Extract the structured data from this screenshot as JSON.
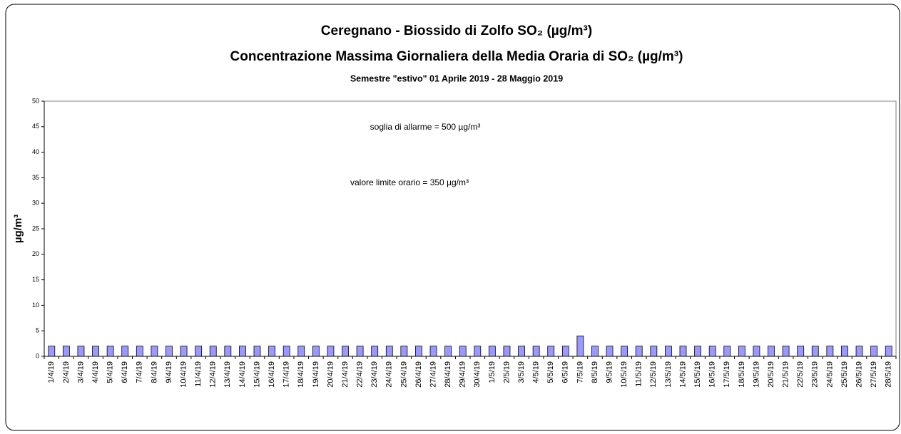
{
  "chart_data": {
    "type": "bar",
    "title": "Ceregnano - Biossido di Zolfo SO₂ (µg/m³)",
    "subtitle": "Concentrazione Massima Giornaliera della Media Oraria di SO₂ (µg/m³)",
    "period": "Semestre \"estivo\" 01 Aprile 2019 - 28 Maggio 2019",
    "y_label": "µg/m³",
    "annotations": [
      "soglia di allarme = 500 µg/m³",
      "valore limite orario = 350 µg/m³"
    ],
    "categories": [
      "1/4/19",
      "2/4/19",
      "3/4/19",
      "4/4/19",
      "5/4/19",
      "6/4/19",
      "7/4/19",
      "8/4/19",
      "9/4/19",
      "10/4/19",
      "11/4/19",
      "12/4/19",
      "13/4/19",
      "14/4/19",
      "15/4/19",
      "16/4/19",
      "17/4/19",
      "18/4/19",
      "19/4/19",
      "20/4/19",
      "21/4/19",
      "22/4/19",
      "23/4/19",
      "24/4/19",
      "25/4/19",
      "26/4/19",
      "27/4/19",
      "28/4/19",
      "29/4/19",
      "30/4/19",
      "1/5/19",
      "2/5/19",
      "3/5/19",
      "4/5/19",
      "5/5/19",
      "6/5/19",
      "7/5/19",
      "8/5/19",
      "9/5/19",
      "10/5/19",
      "11/5/19",
      "12/5/19",
      "13/5/19",
      "14/5/19",
      "15/5/19",
      "16/5/19",
      "17/5/19",
      "18/5/19",
      "19/5/19",
      "20/5/19",
      "21/5/19",
      "22/5/19",
      "23/5/19",
      "24/5/19",
      "25/5/19",
      "26/5/19",
      "27/5/19",
      "28/5/19"
    ],
    "values": [
      2,
      2,
      2,
      2,
      2,
      2,
      2,
      2,
      2,
      2,
      2,
      2,
      2,
      2,
      2,
      2,
      2,
      2,
      2,
      2,
      2,
      2,
      2,
      2,
      2,
      2,
      2,
      2,
      2,
      2,
      2,
      2,
      2,
      2,
      2,
      2,
      4,
      2,
      2,
      2,
      2,
      2,
      2,
      2,
      2,
      2,
      2,
      2,
      2,
      2,
      2,
      2,
      2,
      2,
      2,
      2,
      2,
      2
    ],
    "color": "#9999ff",
    "ylim": [
      0,
      50
    ],
    "yticks": [
      0,
      5,
      10,
      15,
      20,
      25,
      30,
      35,
      40,
      45,
      50
    ],
    "grid": false
  }
}
